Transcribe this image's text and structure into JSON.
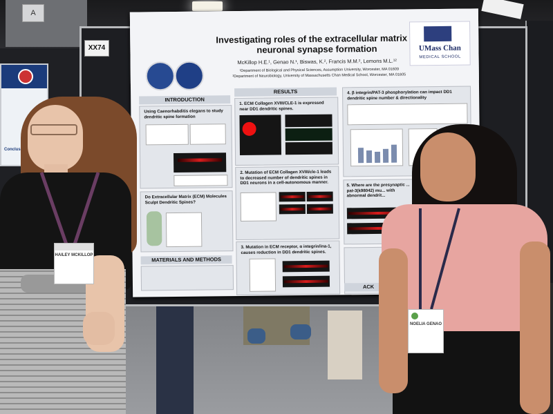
{
  "scene": {
    "board_label": "XX74",
    "side_poster_caption": "Conclusions"
  },
  "poster": {
    "title": "Investigating roles of the extracellular matrix in neuronal synapse formation",
    "authors": "McKillop H.E.¹, Genao N.¹, Biswas, K.², Francis M.M.², Lemons M.L.¹²",
    "affiliation_1": "¹Department of Biological and Physical Sciences, Assumption University, Worcester, MA 01609",
    "affiliation_2": "²Department of Neurobiology, University of Massachusetts Chan Medical School, Worcester, MA 01605",
    "logo_text": "UMass Chan",
    "logo_subtext": "MEDICAL SCHOOL",
    "sections": {
      "introduction": "INTRODUCTION",
      "intro_item": "Using Caenorhabditis elegans to study dendritic spine formation",
      "ecm_question": "Do Extracellular Matrix (ECM) Molecules Sculpt Dendritic Spines?",
      "methods": "MATERIALS AND METHODS",
      "results": "RESULTS",
      "result_1": "1. ECM Collagen XVIII/CLE-1 is expressed near DD1 dendritic spines.",
      "result_2": "2. Mutation of ECM Collagen XVIII/cle-1 leads to decreased number of dendritic spines in DD1 neurons in a cell-autonomous manner.",
      "result_3": "3. Mutation in ECM receptor, α integrin/ina-1, causes reduction in DD1 dendritic spines.",
      "result_4": "4. β integrin/PAT-3 phosphorylation can impact DD1 dendritic spine number & directionality",
      "result_5": "5. Where are the presynaptic ... pat-3(k98042) mu... with abnormal dendrit...",
      "ack": "ACK"
    }
  },
  "badges": {
    "left_name": "HAILEY MCKILLOP",
    "right_name": "NOELIA GENAO"
  }
}
